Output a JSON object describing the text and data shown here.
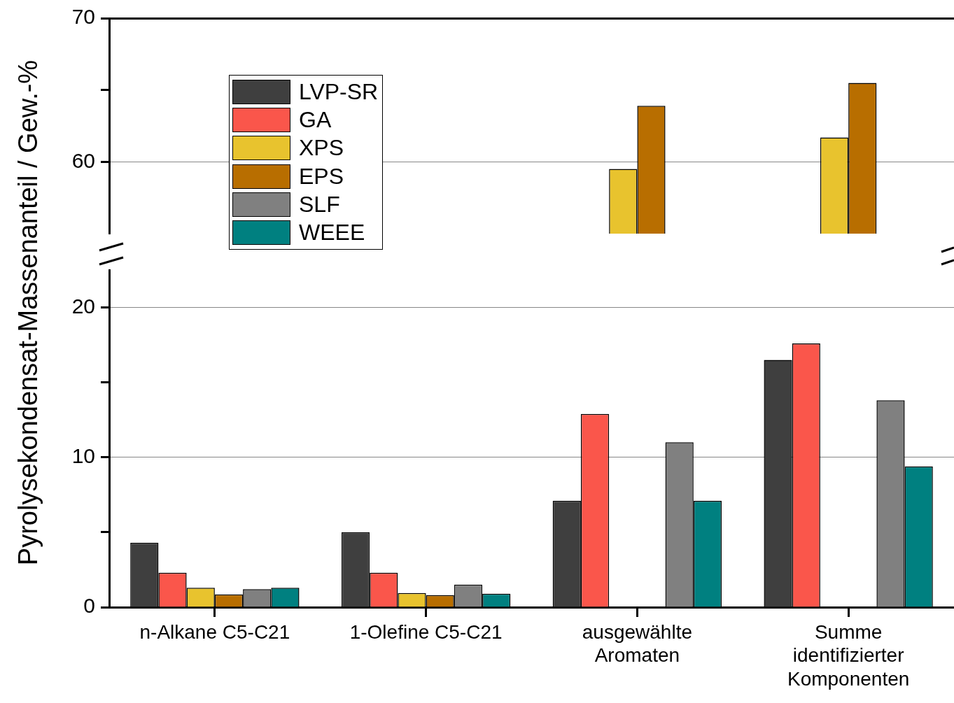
{
  "chart_data": [
    {
      "type": "bar",
      "categories": [
        null,
        null,
        null,
        null
      ],
      "ylim": [
        55,
        70
      ],
      "yticks": [
        60,
        {
          "value": 65,
          "label": null
        },
        70
      ],
      "grid": "y",
      "legend": "left",
      "tick_labels": "y",
      "series": [
        {
          "name": "LVP-SR",
          "color": "#3f3f3f",
          "values": [
            null,
            null,
            null,
            null
          ]
        },
        {
          "name": "GA",
          "color": "#fa564b",
          "values": [
            null,
            null,
            null,
            null
          ]
        },
        {
          "name": "XPS",
          "color": "#e8c32e",
          "values": [
            null,
            null,
            59.5,
            61.7
          ]
        },
        {
          "name": "EPS",
          "color": "#b86e00",
          "values": [
            null,
            null,
            63.9,
            65.5
          ]
        },
        {
          "name": "SLF",
          "color": "#808080",
          "values": [
            null,
            null,
            null,
            null
          ]
        },
        {
          "name": "WEEE",
          "color": "#008080",
          "values": [
            null,
            null,
            null,
            null
          ]
        }
      ]
    },
    {
      "type": "bar",
      "categories": [
        "n-Alkane C5-C21",
        "1-Olefine C5-C21",
        "ausgewählte Aromaten",
        "Summe identifizierter Komponenten"
      ],
      "ylabel": "Pyrolysekondensat-Massenanteil / Gew.-%",
      "ylim": [
        0,
        22.5
      ],
      "yticks": [
        0,
        {
          "value": 5,
          "label": null
        },
        10,
        {
          "value": 15,
          "label": null
        },
        20
      ],
      "grid": "y",
      "series": [
        {
          "color": "#3f3f3f",
          "values": [
            4.3,
            5.0,
            7.1,
            16.5
          ]
        },
        {
          "color": "#fa564b",
          "values": [
            2.3,
            2.3,
            12.9,
            17.6
          ]
        },
        {
          "color": "#e8c32e",
          "values": [
            1.3,
            0.95,
            null,
            null
          ]
        },
        {
          "color": "#b86e00",
          "values": [
            0.85,
            0.8,
            null,
            null
          ]
        },
        {
          "color": "#808080",
          "values": [
            1.2,
            1.5,
            11.0,
            13.8
          ]
        },
        {
          "color": "#008080",
          "values": [
            1.3,
            0.9,
            7.1,
            9.4
          ]
        }
      ]
    }
  ]
}
